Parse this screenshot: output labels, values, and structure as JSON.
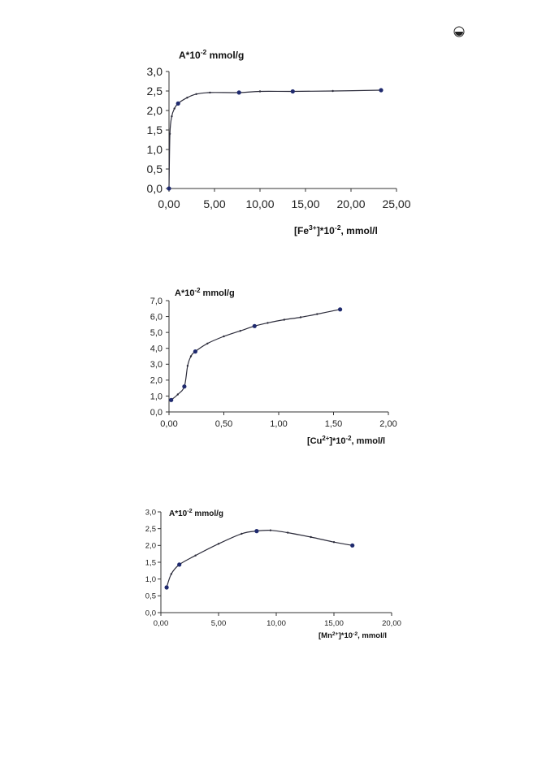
{
  "page": {
    "corner_icon": "circled-half-icon"
  },
  "chart_data": [
    {
      "type": "line",
      "ylabel": "A*10⁻² mmol/g",
      "xlabel": "[Fe³⁺]*10⁻², mmol/l",
      "xlim": [
        0,
        25
      ],
      "ylim": [
        0,
        3
      ],
      "x_ticks": [
        "0,00",
        "5,00",
        "10,00",
        "15,00",
        "20,00",
        "25,00"
      ],
      "y_ticks": [
        "0,0",
        "0,5",
        "1,0",
        "1,5",
        "2,0",
        "2,5",
        "3,0"
      ],
      "grid": false,
      "series": [
        {
          "x": [
            0.0,
            0.1,
            0.3,
            0.6,
            1.0,
            2.0,
            3.0,
            4.5,
            7.7,
            10.0,
            13.6,
            18.0,
            23.3
          ],
          "y": [
            0.0,
            1.4,
            1.85,
            2.05,
            2.18,
            2.33,
            2.42,
            2.46,
            2.46,
            2.49,
            2.49,
            2.5,
            2.52
          ],
          "markers": [
            0,
            4,
            8,
            10,
            12
          ]
        }
      ]
    },
    {
      "type": "line",
      "ylabel": "A*10⁻² mmol/g",
      "xlabel": "[Cu²⁺]*10⁻², mmol/l",
      "xlim": [
        0,
        2
      ],
      "ylim": [
        0,
        7
      ],
      "x_ticks": [
        "0,00",
        "0,50",
        "1,00",
        "1,50",
        "2,00"
      ],
      "y_ticks": [
        "0,0",
        "1,0",
        "2,0",
        "3,0",
        "4,0",
        "5,0",
        "6,0",
        "7,0"
      ],
      "grid": false,
      "series": [
        {
          "x": [
            0.02,
            0.08,
            0.14,
            0.17,
            0.2,
            0.24,
            0.35,
            0.5,
            0.65,
            0.78,
            0.9,
            1.05,
            1.2,
            1.35,
            1.56
          ],
          "y": [
            0.75,
            1.1,
            1.6,
            2.9,
            3.5,
            3.8,
            4.3,
            4.75,
            5.1,
            5.4,
            5.6,
            5.8,
            5.95,
            6.15,
            6.45
          ],
          "markers": [
            0,
            2,
            5,
            9,
            14
          ]
        }
      ]
    },
    {
      "type": "line",
      "ylabel": "A*10⁻² mmol/g",
      "xlabel": "[Mn²⁺]*10⁻², mmol/l",
      "xlim": [
        0,
        20
      ],
      "ylim": [
        0,
        3
      ],
      "x_ticks": [
        "0,00",
        "5,00",
        "10,00",
        "15,00",
        "20,00"
      ],
      "y_ticks": [
        "0,0",
        "0,5",
        "1,0",
        "1,5",
        "2,0",
        "2,5",
        "3,0"
      ],
      "grid": false,
      "series": [
        {
          "x": [
            0.5,
            0.9,
            1.6,
            3.0,
            5.0,
            7.0,
            8.3,
            9.5,
            11.0,
            13.0,
            15.0,
            16.6
          ],
          "y": [
            0.75,
            1.15,
            1.43,
            1.7,
            2.05,
            2.35,
            2.43,
            2.45,
            2.38,
            2.25,
            2.1,
            2.0
          ],
          "markers": [
            0,
            2,
            6,
            11
          ]
        }
      ]
    }
  ]
}
